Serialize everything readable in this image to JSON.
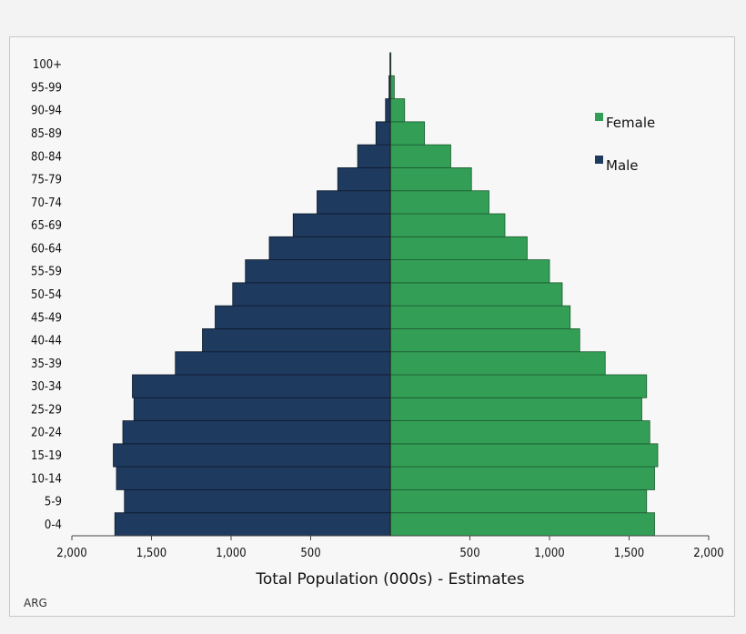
{
  "chart_data": {
    "type": "bar",
    "orientation": "horizontal-population-pyramid",
    "categories": [
      "0-4",
      "5-9",
      "10-14",
      "15-19",
      "20-24",
      "25-29",
      "30-34",
      "35-39",
      "40-44",
      "45-49",
      "50-54",
      "55-59",
      "60-64",
      "65-69",
      "70-74",
      "75-79",
      "80-84",
      "85-89",
      "90-94",
      "95-99",
      "100+"
    ],
    "series": [
      {
        "name": "Male",
        "color": "#1f3a5f",
        "values": [
          1730,
          1670,
          1720,
          1740,
          1680,
          1610,
          1620,
          1350,
          1180,
          1100,
          990,
          910,
          760,
          610,
          460,
          330,
          205,
          90,
          30,
          8,
          2
        ]
      },
      {
        "name": "Female",
        "color": "#339e55",
        "values": [
          1660,
          1610,
          1660,
          1680,
          1630,
          1580,
          1610,
          1350,
          1190,
          1130,
          1080,
          1000,
          860,
          720,
          620,
          510,
          380,
          215,
          90,
          25,
          4
        ]
      }
    ],
    "xlabel": "Total Population (000s) - Estimates",
    "xlim": [
      -2000,
      2000
    ],
    "xticks": [
      {
        "value": -2000,
        "label": "2,000"
      },
      {
        "value": -1500,
        "label": "1,500"
      },
      {
        "value": -1000,
        "label": "1,000"
      },
      {
        "value": -500,
        "label": "500"
      },
      {
        "value": 500,
        "label": "500"
      },
      {
        "value": 1000,
        "label": "1,000"
      },
      {
        "value": 1500,
        "label": "1,500"
      },
      {
        "value": 2000,
        "label": "2,000"
      }
    ],
    "legend": {
      "placement": "right",
      "entries": [
        {
          "label": "Female",
          "color": "#339e55"
        },
        {
          "label": "Male",
          "color": "#1f3a5f"
        }
      ]
    },
    "grid": false
  },
  "footer": {
    "country_code": "ARG"
  }
}
